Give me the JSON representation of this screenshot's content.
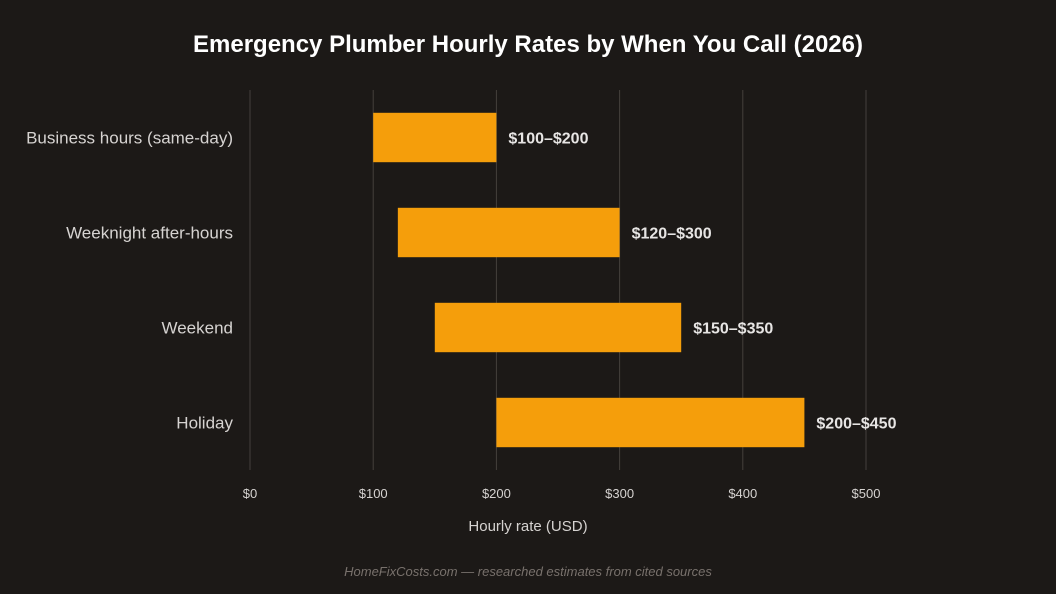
{
  "chart_data": {
    "type": "bar",
    "orientation": "horizontal",
    "title": "Emergency Plumber Hourly Rates by When You Call (2026)",
    "xlabel": "Hourly rate (USD)",
    "ylabel": "",
    "xlim": [
      0,
      500
    ],
    "x_ticks": [
      0,
      100,
      200,
      300,
      400,
      500
    ],
    "x_tick_labels": [
      "$0",
      "$100",
      "$200",
      "$300",
      "$400",
      "$500"
    ],
    "grid": "vertical",
    "bar_color": "#f59e0b",
    "bars": [
      {
        "category": "Business hours (same-day)",
        "low": 100,
        "high": 200,
        "label": "$100–$200"
      },
      {
        "category": "Weeknight after-hours",
        "low": 120,
        "high": 300,
        "label": "$120–$300"
      },
      {
        "category": "Weekend",
        "low": 150,
        "high": 350,
        "label": "$150–$350"
      },
      {
        "category": "Holiday",
        "low": 200,
        "high": 450,
        "label": "$200–$450"
      }
    ]
  },
  "footer": "HomeFixCosts.com — researched estimates from cited sources"
}
